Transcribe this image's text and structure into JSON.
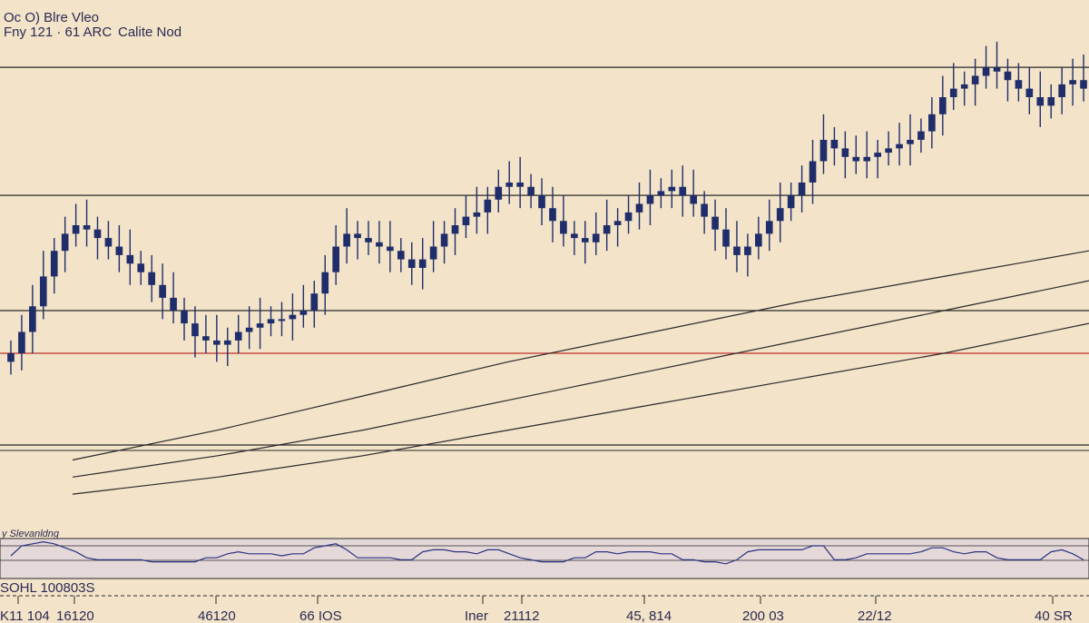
{
  "header": {
    "line1": "Oc  O) Blre Vleo",
    "line2_left": "Fny 121 · 61  ARC",
    "line2_right": "Calite Nod"
  },
  "indicator": {
    "label": "y Slevanldng",
    "readout": "SOHL 100803S"
  },
  "colors": {
    "background": "#f3e3c8",
    "candle": "#1f2d6b",
    "line": "#2a2a2a",
    "red_line": "#c0302b",
    "indicator_band": "#e4d8d9",
    "indicator_line": "#2a3380"
  },
  "chart_data": {
    "type": "candlestick",
    "title": "",
    "xlabel": "",
    "ylabel": "",
    "ylim": [
      0,
      100
    ],
    "x_ticks": [
      "K11 104",
      "16120",
      "46120",
      "66 IOS",
      "Iner",
      "21112",
      "45, 814",
      "200 03",
      "22/12",
      "40 SR"
    ],
    "close_series": [
      30,
      35,
      41,
      48,
      54,
      58,
      60,
      59,
      57,
      55,
      53,
      51,
      49,
      46,
      43,
      40,
      37,
      34,
      33,
      32,
      33,
      35,
      36,
      37,
      38,
      38,
      39,
      40,
      44,
      49,
      55,
      58,
      57,
      56,
      55,
      54,
      52,
      50,
      52,
      55,
      58,
      60,
      62,
      63,
      66,
      69,
      70,
      69,
      67,
      64,
      61,
      58,
      57,
      56,
      58,
      60,
      61,
      63,
      65,
      67,
      68,
      69,
      67,
      65,
      62,
      59,
      55,
      53,
      55,
      58,
      61,
      64,
      67,
      70,
      75,
      80,
      78,
      76,
      75,
      76,
      77,
      78,
      79,
      80,
      82,
      86,
      90,
      92,
      93,
      95,
      97,
      96,
      94,
      92,
      90,
      88,
      90,
      93,
      94,
      92
    ],
    "moving_averages": [
      {
        "values": [
          5,
          12,
          20,
          28,
          35,
          42,
          48,
          54
        ]
      },
      {
        "values": [
          1,
          6,
          12,
          19,
          26,
          33,
          40,
          47
        ]
      },
      {
        "values": [
          -3,
          1,
          6,
          12,
          18,
          24,
          30,
          37
        ]
      }
    ],
    "horizontal_levels": [
      97,
      67,
      40
    ]
  }
}
